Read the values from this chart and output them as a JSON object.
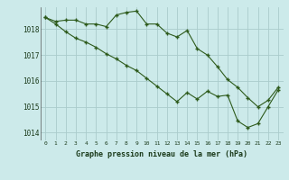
{
  "background_color": "#cceaea",
  "grid_color": "#aacccc",
  "line_color": "#2d5a1b",
  "marker_color": "#2d5a1b",
  "xlabel": "Graphe pression niveau de la mer (hPa)",
  "ylim": [
    1013.7,
    1018.85
  ],
  "yticks": [
    1014,
    1015,
    1016,
    1017,
    1018
  ],
  "xlim": [
    -0.5,
    23.5
  ],
  "xticks": [
    0,
    1,
    2,
    3,
    4,
    5,
    6,
    7,
    8,
    9,
    10,
    11,
    12,
    13,
    14,
    15,
    16,
    17,
    18,
    19,
    20,
    21,
    22,
    23
  ],
  "series1_x": [
    0,
    1,
    2,
    3,
    4,
    5,
    6,
    7,
    8,
    9,
    10,
    11,
    12,
    13,
    14,
    15,
    16,
    17,
    18,
    19,
    20,
    21,
    22,
    23
  ],
  "series1_y": [
    1018.45,
    1018.3,
    1018.35,
    1018.35,
    1018.2,
    1018.2,
    1018.1,
    1018.55,
    1018.65,
    1018.7,
    1018.2,
    1018.2,
    1017.85,
    1017.7,
    1017.95,
    1017.25,
    1017.0,
    1016.55,
    1016.05,
    1015.75,
    1015.35,
    1015.0,
    1015.25,
    1015.75
  ],
  "series2_x": [
    0,
    1,
    2,
    3,
    4,
    5,
    6,
    7,
    8,
    9,
    10,
    11,
    12,
    13,
    14,
    15,
    16,
    17,
    18,
    19,
    20,
    21,
    22,
    23
  ],
  "series2_y": [
    1018.45,
    1018.2,
    1017.9,
    1017.65,
    1017.5,
    1017.3,
    1017.05,
    1016.85,
    1016.6,
    1016.4,
    1016.1,
    1015.8,
    1015.5,
    1015.2,
    1015.55,
    1015.3,
    1015.6,
    1015.4,
    1015.45,
    1014.45,
    1014.2,
    1014.35,
    1015.0,
    1015.65
  ]
}
